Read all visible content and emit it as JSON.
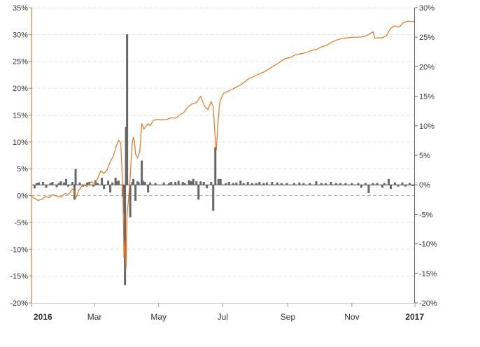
{
  "chart_data": {
    "type": "line",
    "x_range": [
      "2016-01-01",
      "2016-12-31"
    ],
    "x_tick_labels": [
      {
        "label": "2016",
        "x": "2016-01-01",
        "bold": true
      },
      {
        "label": "Mar",
        "x": "2016-03-01",
        "bold": false
      },
      {
        "label": "May",
        "x": "2016-05-01",
        "bold": false
      },
      {
        "label": "Jul",
        "x": "2016-07-01",
        "bold": false
      },
      {
        "label": "Sep",
        "x": "2016-09-01",
        "bold": false
      },
      {
        "label": "Nov",
        "x": "2016-11-01",
        "bold": false
      },
      {
        "label": "2017",
        "x": "2016-12-31",
        "bold": true
      }
    ],
    "left_axis": {
      "unit": "%",
      "ylim": [
        -20,
        35
      ],
      "ticks": [
        35,
        30,
        25,
        20,
        15,
        10,
        5,
        0,
        -5,
        -10,
        -15,
        -20
      ],
      "tick_labels": [
        "35%",
        "30%",
        "25%",
        "20%",
        "15%",
        "10%",
        "5%",
        "0%",
        "-5%",
        "-10%",
        "-15%",
        "-20%"
      ]
    },
    "right_axis": {
      "unit": "%",
      "ylim": [
        -20,
        30
      ],
      "ticks": [
        30,
        25,
        20,
        15,
        10,
        5,
        0,
        -5,
        -10,
        -15,
        -20
      ],
      "tick_labels": [
        "30%",
        "25%",
        "20%",
        "15%",
        "10%",
        "5%",
        "0%",
        "-5%",
        "-10%",
        "-15%",
        "-20%"
      ]
    },
    "grid": true,
    "colors": {
      "line": "#e8731f",
      "bars": "#666666",
      "grid": "#e3e3e3",
      "zero_line": "#444444",
      "left_axis": "#e8731f",
      "right_axis": "#666666",
      "text": "#333333"
    },
    "series": [
      {
        "type": "line",
        "axis": "left",
        "points": [
          [
            "2016-01-01",
            -0.2
          ],
          [
            "2016-01-04",
            -0.5
          ],
          [
            "2016-01-07",
            -0.9
          ],
          [
            "2016-01-11",
            -0.7
          ],
          [
            "2016-01-14",
            -0.2
          ],
          [
            "2016-01-18",
            -0.4
          ],
          [
            "2016-01-21",
            0.2
          ],
          [
            "2016-01-25",
            -0.1
          ],
          [
            "2016-01-29",
            -0.3
          ],
          [
            "2016-02-02",
            0.4
          ],
          [
            "2016-02-05",
            0.2
          ],
          [
            "2016-02-09",
            1.2
          ],
          [
            "2016-02-11",
            0.9
          ],
          [
            "2016-02-12",
            -0.6
          ],
          [
            "2016-02-15",
            1.0
          ],
          [
            "2016-02-19",
            2.0
          ],
          [
            "2016-02-23",
            1.7
          ],
          [
            "2016-02-27",
            2.6
          ],
          [
            "2016-03-01",
            2.2
          ],
          [
            "2016-03-04",
            3.2
          ],
          [
            "2016-03-07",
            4.6
          ],
          [
            "2016-03-10",
            4.1
          ],
          [
            "2016-03-13",
            4.8
          ],
          [
            "2016-03-16",
            6.3
          ],
          [
            "2016-03-19",
            7.4
          ],
          [
            "2016-03-22",
            9.4
          ],
          [
            "2016-03-24",
            10.3
          ],
          [
            "2016-03-26",
            9.8
          ],
          [
            "2016-03-27",
            5.2
          ],
          [
            "2016-03-28",
            1.2
          ],
          [
            "2016-03-29",
            -11.5
          ],
          [
            "2016-03-30",
            -8.5
          ],
          [
            "2016-03-31",
            -13.5
          ],
          [
            "2016-04-01",
            -3.5
          ],
          [
            "2016-04-02",
            -1.5
          ],
          [
            "2016-04-04",
            3.5
          ],
          [
            "2016-04-05",
            7.2
          ],
          [
            "2016-04-06",
            9.8
          ],
          [
            "2016-04-07",
            10.9
          ],
          [
            "2016-04-08",
            10.1
          ],
          [
            "2016-04-09",
            7.8
          ],
          [
            "2016-04-11",
            7.0
          ],
          [
            "2016-04-13",
            8.1
          ],
          [
            "2016-04-15",
            13.4
          ],
          [
            "2016-04-17",
            12.4
          ],
          [
            "2016-04-19",
            12.9
          ],
          [
            "2016-04-21",
            13.4
          ],
          [
            "2016-04-23",
            13.0
          ],
          [
            "2016-04-26",
            14.0
          ],
          [
            "2016-04-30",
            14.2
          ],
          [
            "2016-05-04",
            14.1
          ],
          [
            "2016-05-09",
            14.2
          ],
          [
            "2016-05-13",
            14.5
          ],
          [
            "2016-05-17",
            14.4
          ],
          [
            "2016-05-21",
            15.0
          ],
          [
            "2016-05-25",
            15.5
          ],
          [
            "2016-05-29",
            16.5
          ],
          [
            "2016-06-02",
            17.1
          ],
          [
            "2016-06-06",
            17.3
          ],
          [
            "2016-06-10",
            18.5
          ],
          [
            "2016-06-12",
            17.5
          ],
          [
            "2016-06-14",
            16.6
          ],
          [
            "2016-06-17",
            16.0
          ],
          [
            "2016-06-20",
            17.5
          ],
          [
            "2016-06-22",
            16.5
          ],
          [
            "2016-06-23",
            13.5
          ],
          [
            "2016-06-24",
            10.2
          ],
          [
            "2016-06-25",
            8.5
          ],
          [
            "2016-06-26",
            12.0
          ],
          [
            "2016-06-27",
            14.5
          ],
          [
            "2016-06-28",
            17.2
          ],
          [
            "2016-06-30",
            18.3
          ],
          [
            "2016-07-02",
            19.1
          ],
          [
            "2016-07-06",
            19.4
          ],
          [
            "2016-07-10",
            19.8
          ],
          [
            "2016-07-14",
            20.2
          ],
          [
            "2016-07-18",
            20.6
          ],
          [
            "2016-07-22",
            21.2
          ],
          [
            "2016-07-26",
            21.8
          ],
          [
            "2016-07-30",
            22.1
          ],
          [
            "2016-08-04",
            22.6
          ],
          [
            "2016-08-09",
            23.0
          ],
          [
            "2016-08-14",
            23.6
          ],
          [
            "2016-08-19",
            24.2
          ],
          [
            "2016-08-24",
            24.8
          ],
          [
            "2016-08-29",
            25.5
          ],
          [
            "2016-09-03",
            25.7
          ],
          [
            "2016-09-08",
            26.2
          ],
          [
            "2016-09-13",
            26.4
          ],
          [
            "2016-09-18",
            26.6
          ],
          [
            "2016-09-23",
            27.0
          ],
          [
            "2016-09-28",
            27.2
          ],
          [
            "2016-10-03",
            27.7
          ],
          [
            "2016-10-08",
            28.0
          ],
          [
            "2016-10-13",
            28.6
          ],
          [
            "2016-10-18",
            29.0
          ],
          [
            "2016-10-23",
            29.3
          ],
          [
            "2016-10-28",
            29.4
          ],
          [
            "2016-11-02",
            29.5
          ],
          [
            "2016-11-07",
            29.5
          ],
          [
            "2016-11-12",
            29.6
          ],
          [
            "2016-11-17",
            30.0
          ],
          [
            "2016-11-21",
            30.5
          ],
          [
            "2016-11-23",
            29.3
          ],
          [
            "2016-11-26",
            29.4
          ],
          [
            "2016-11-30",
            29.4
          ],
          [
            "2016-12-04",
            29.8
          ],
          [
            "2016-12-08",
            31.2
          ],
          [
            "2016-12-12",
            31.6
          ],
          [
            "2016-12-16",
            31.4
          ],
          [
            "2016-12-20",
            32.2
          ],
          [
            "2016-12-24",
            32.5
          ],
          [
            "2016-12-31",
            32.4
          ]
        ]
      },
      {
        "type": "bar",
        "axis": "right",
        "points": [
          [
            "2016-01-04",
            -0.6
          ],
          [
            "2016-01-06",
            0.3
          ],
          [
            "2016-01-08",
            0.4
          ],
          [
            "2016-01-12",
            0.5
          ],
          [
            "2016-01-15",
            -0.5
          ],
          [
            "2016-01-19",
            0.3
          ],
          [
            "2016-01-21",
            0.5
          ],
          [
            "2016-01-25",
            -0.4
          ],
          [
            "2016-01-27",
            0.3
          ],
          [
            "2016-01-29",
            0.6
          ],
          [
            "2016-02-01",
            0.4
          ],
          [
            "2016-02-03",
            1.0
          ],
          [
            "2016-02-05",
            -0.3
          ],
          [
            "2016-02-09",
            0.5
          ],
          [
            "2016-02-11",
            -2.5
          ],
          [
            "2016-02-12",
            2.7
          ],
          [
            "2016-02-16",
            0.4
          ],
          [
            "2016-02-19",
            -0.3
          ],
          [
            "2016-02-23",
            0.4
          ],
          [
            "2016-02-25",
            0.5
          ],
          [
            "2016-02-29",
            -0.3
          ],
          [
            "2016-03-02",
            0.8
          ],
          [
            "2016-03-04",
            0.3
          ],
          [
            "2016-03-08",
            1.2
          ],
          [
            "2016-03-10",
            -0.7
          ],
          [
            "2016-03-14",
            0.7
          ],
          [
            "2016-03-16",
            -1.3
          ],
          [
            "2016-03-18",
            0.4
          ],
          [
            "2016-03-21",
            1.2
          ],
          [
            "2016-03-22",
            0.6
          ],
          [
            "2016-03-24",
            0.7
          ],
          [
            "2016-03-28",
            -2.0
          ],
          [
            "2016-03-29",
            -4.8
          ],
          [
            "2016-03-30",
            -17.0
          ],
          [
            "2016-03-31",
            9.8
          ],
          [
            "2016-04-01",
            25.5
          ],
          [
            "2016-04-04",
            -5.5
          ],
          [
            "2016-04-06",
            0.5
          ],
          [
            "2016-04-07",
            1.0
          ],
          [
            "2016-04-09",
            -2.7
          ],
          [
            "2016-04-11",
            0.6
          ],
          [
            "2016-04-12",
            0.4
          ],
          [
            "2016-04-15",
            4.1
          ],
          [
            "2016-04-16",
            0.7
          ],
          [
            "2016-04-18",
            0.5
          ],
          [
            "2016-04-21",
            -1.3
          ],
          [
            "2016-04-23",
            0.4
          ],
          [
            "2016-04-28",
            0.3
          ],
          [
            "2016-05-06",
            0.4
          ],
          [
            "2016-05-11",
            0.3
          ],
          [
            "2016-05-13",
            0.5
          ],
          [
            "2016-05-17",
            0.5
          ],
          [
            "2016-05-20",
            0.7
          ],
          [
            "2016-05-24",
            0.5
          ],
          [
            "2016-05-26",
            0.3
          ],
          [
            "2016-05-30",
            0.8
          ],
          [
            "2016-06-01",
            0.6
          ],
          [
            "2016-06-03",
            1.0
          ],
          [
            "2016-06-06",
            0.6
          ],
          [
            "2016-06-08",
            -2.5
          ],
          [
            "2016-06-10",
            0.6
          ],
          [
            "2016-06-13",
            0.5
          ],
          [
            "2016-06-16",
            -0.6
          ],
          [
            "2016-06-20",
            0.5
          ],
          [
            "2016-06-22",
            -4.4
          ],
          [
            "2016-06-24",
            6.4
          ],
          [
            "2016-06-27",
            1.0
          ],
          [
            "2016-06-29",
            1.0
          ],
          [
            "2016-07-04",
            0.3
          ],
          [
            "2016-07-07",
            0.5
          ],
          [
            "2016-07-11",
            0.3
          ],
          [
            "2016-07-14",
            0.4
          ],
          [
            "2016-07-18",
            0.7
          ],
          [
            "2016-07-21",
            0.3
          ],
          [
            "2016-07-25",
            0.5
          ],
          [
            "2016-07-29",
            0.3
          ],
          [
            "2016-08-02",
            0.3
          ],
          [
            "2016-08-05",
            0.5
          ],
          [
            "2016-08-09",
            0.3
          ],
          [
            "2016-08-12",
            0.4
          ],
          [
            "2016-08-17",
            0.5
          ],
          [
            "2016-08-22",
            0.4
          ],
          [
            "2016-08-26",
            0.3
          ],
          [
            "2016-08-31",
            0.3
          ],
          [
            "2016-09-07",
            0.3
          ],
          [
            "2016-09-12",
            0.4
          ],
          [
            "2016-09-16",
            0.3
          ],
          [
            "2016-09-22",
            0.3
          ],
          [
            "2016-09-28",
            0.6
          ],
          [
            "2016-10-03",
            0.3
          ],
          [
            "2016-10-07",
            0.3
          ],
          [
            "2016-10-12",
            0.5
          ],
          [
            "2016-10-17",
            0.3
          ],
          [
            "2016-10-21",
            0.3
          ],
          [
            "2016-10-26",
            0.3
          ],
          [
            "2016-11-01",
            0.3
          ],
          [
            "2016-11-07",
            0.3
          ],
          [
            "2016-11-10",
            -0.5
          ],
          [
            "2016-11-14",
            0.3
          ],
          [
            "2016-11-17",
            -1.4
          ],
          [
            "2016-11-21",
            0.3
          ],
          [
            "2016-11-25",
            0.3
          ],
          [
            "2016-11-30",
            -0.5
          ],
          [
            "2016-12-02",
            0.3
          ],
          [
            "2016-12-06",
            1.0
          ],
          [
            "2016-12-08",
            -0.7
          ],
          [
            "2016-12-12",
            0.4
          ],
          [
            "2016-12-15",
            -0.3
          ],
          [
            "2016-12-19",
            0.4
          ],
          [
            "2016-12-22",
            -0.3
          ],
          [
            "2016-12-26",
            0.3
          ],
          [
            "2016-12-29",
            -0.2
          ]
        ]
      }
    ]
  }
}
